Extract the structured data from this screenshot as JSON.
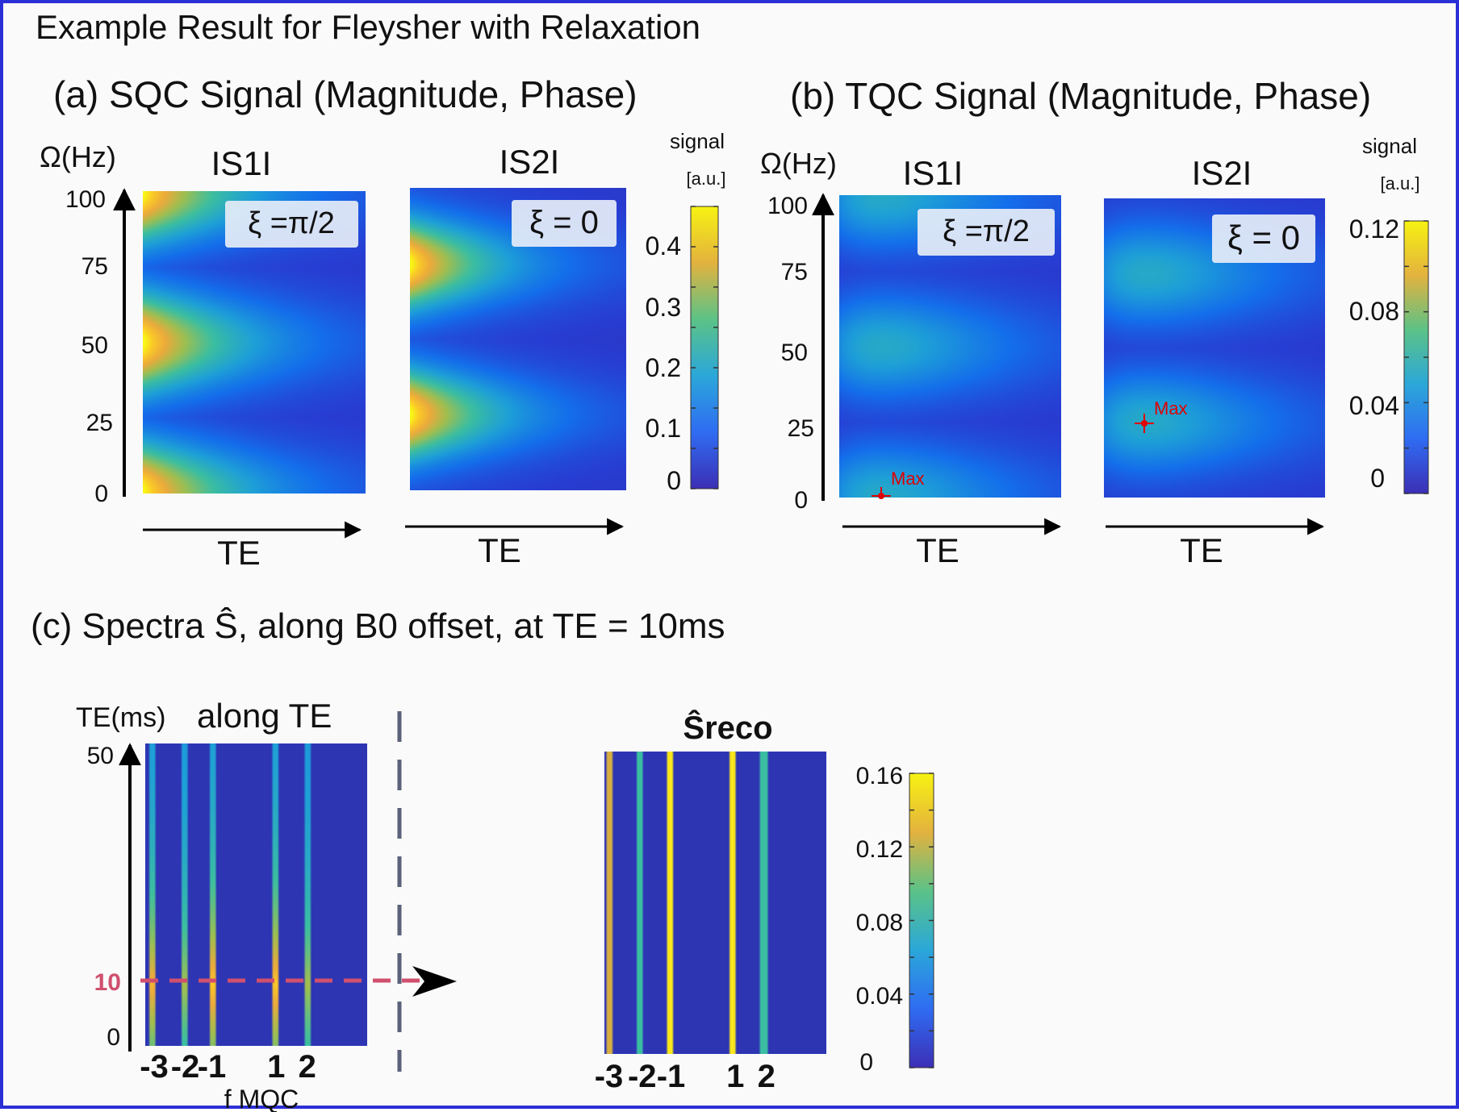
{
  "title": "Example Result for Fleysher with Relaxation",
  "panel_a": {
    "title": "(a) SQC Signal (Magnitude, Phase)",
    "ylabel": "Ω(Hz)",
    "yticks": [
      "100",
      "75",
      "50",
      "25",
      "0"
    ],
    "maps": [
      {
        "name": "IS1I",
        "xi": "ξ =π/2",
        "xlabel": "TE"
      },
      {
        "name": "IS2I",
        "xi": "ξ = 0",
        "xlabel": "TE"
      }
    ],
    "colorbar": {
      "title": "signal",
      "unit": "[a.u.]",
      "ticks": [
        "0.4",
        "0.3",
        "0.2",
        "0.1",
        "0"
      ]
    }
  },
  "panel_b": {
    "title": "(b) TQC Signal (Magnitude, Phase)",
    "ylabel": "Ω(Hz)",
    "yticks": [
      "100",
      "75",
      "50",
      "25",
      "0"
    ],
    "maps": [
      {
        "name": "IS1I",
        "xi": "ξ =π/2",
        "xlabel": "TE",
        "max_label": "Max"
      },
      {
        "name": "IS2I",
        "xi": "ξ = 0",
        "xlabel": "TE",
        "max_label": "Max"
      }
    ],
    "colorbar": {
      "title": "signal",
      "unit": "[a.u.]",
      "ticks": [
        "0.12",
        "0.08",
        "0.04",
        "0"
      ]
    }
  },
  "panel_c": {
    "title": "(c) Spectra Ŝ, along B0 offset, at TE = 10ms",
    "left": {
      "ylabel": "TE(ms)",
      "title": "along TE",
      "yticks": [
        "50",
        "0"
      ],
      "marker_label": "10",
      "xticks": [
        "-3",
        "-2",
        "-1",
        "1",
        "2"
      ],
      "xlabel": "f MQC"
    },
    "right": {
      "title": "Ŝreco",
      "xticks": [
        "-3",
        "-2",
        "-1",
        "1",
        "2"
      ],
      "colorbar_ticks": [
        "0.16",
        "0.12",
        "0.08",
        "0.04",
        "0"
      ]
    }
  },
  "colors": {
    "frame": "#2b2fd6",
    "background": "#35339f",
    "marker": "#d0506e",
    "max_marker": "#e00000"
  },
  "chart_data": [
    {
      "type": "heatmap",
      "title": "IS1I",
      "annotation": "ξ =π/2",
      "xlabel": "TE",
      "ylabel": "Ω(Hz)",
      "y_range": [
        0,
        100
      ],
      "band_peaks_hz": [
        0,
        50,
        100
      ],
      "band_minima_hz": [
        25,
        75
      ],
      "peak_signal": 0.46,
      "colorbar_range": [
        0,
        0.46
      ]
    },
    {
      "type": "heatmap",
      "title": "IS2I",
      "annotation": "ξ = 0",
      "xlabel": "TE",
      "ylabel": "Ω(Hz)",
      "y_range": [
        0,
        100
      ],
      "band_peaks_hz": [
        25,
        75
      ],
      "band_minima_hz": [
        0,
        50,
        100
      ],
      "peak_signal": 0.46,
      "colorbar_range": [
        0,
        0.46
      ]
    },
    {
      "type": "heatmap",
      "title": "IS1I",
      "annotation": "ξ =π/2",
      "xlabel": "TE",
      "ylabel": "Ω(Hz)",
      "y_range": [
        0,
        100
      ],
      "band_peaks_hz": [
        0,
        50,
        100
      ],
      "band_minima_hz": [
        25,
        75
      ],
      "max_point_hz": 0,
      "peak_signal": 0.12,
      "colorbar_range": [
        0,
        0.125
      ]
    },
    {
      "type": "heatmap",
      "title": "IS2I",
      "annotation": "ξ = 0",
      "xlabel": "TE",
      "ylabel": "Ω(Hz)",
      "y_range": [
        0,
        100
      ],
      "band_peaks_hz": [
        25,
        75
      ],
      "band_minima_hz": [
        0,
        50,
        100
      ],
      "max_point_hz": 25,
      "peak_signal": 0.12,
      "colorbar_range": [
        0,
        0.125
      ]
    },
    {
      "type": "heatmap",
      "title": "along TE",
      "xlabel": "f MQC",
      "ylabel": "TE(ms)",
      "y_range": [
        0,
        50
      ],
      "marker_te_ms": 10,
      "categories": [
        "-3",
        "-2",
        "-1",
        "1",
        "2"
      ]
    },
    {
      "type": "heatmap",
      "title": "Ŝreco",
      "categories": [
        "-3",
        "-2",
        "-1",
        "1",
        "2"
      ],
      "values": [
        0.13,
        0.09,
        0.16,
        0.16,
        0.09
      ],
      "colorbar_range": [
        0,
        0.165
      ]
    }
  ]
}
